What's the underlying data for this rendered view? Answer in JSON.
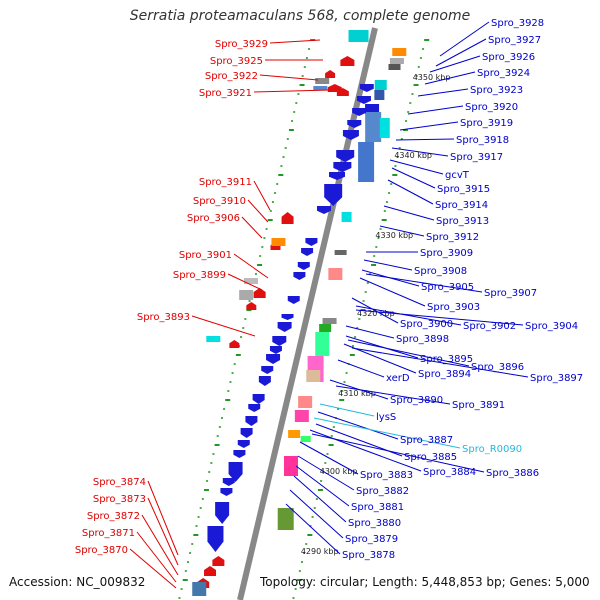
{
  "title": "Serratia proteamaculans 568, complete genome",
  "accession_text": "Accession: NC_009832",
  "summary_text": "Topology: circular; Length: 5,448,853 bp; Genes: 5,000",
  "colors": {
    "reverse_label": "#e00000",
    "forward_label": "#0000cc",
    "rna_label": "#22bbdd",
    "backbone": "#888888",
    "cds_forward": "#1a1ad6",
    "cds_reverse": "#e01010",
    "tick": "#229922"
  },
  "kbp_marks": [
    "4350 kbp",
    "4340 kbp",
    "4330 kbp",
    "4320 kbp",
    "4310 kbp",
    "4300 kbp",
    "4290 kbp"
  ],
  "left_labels": [
    "Spro_3929",
    "Spro_3925",
    "Spro_3922",
    "Spro_3921",
    "Spro_3911",
    "Spro_3910",
    "Spro_3906",
    "Spro_3901",
    "Spro_3899",
    "Spro_3893",
    "Spro_3874",
    "Spro_3873",
    "Spro_3872",
    "Spro_3871",
    "Spro_3870"
  ],
  "right_labels": [
    "Spro_3928",
    "Spro_3927",
    "Spro_3926",
    "Spro_3924",
    "Spro_3923",
    "Spro_3920",
    "Spro_3919",
    "Spro_3918",
    "Spro_3917",
    "gcvT",
    "Spro_3915",
    "Spro_3914",
    "Spro_3913",
    "Spro_3912",
    "Spro_3909",
    "Spro_3908",
    "Spro_3905",
    "Spro_3907",
    "Spro_3903",
    "Spro_3900",
    "Spro_3902",
    "Spro_3904",
    "Spro_3898",
    "Spro_3895",
    "Spro_3896",
    "Spro_3894",
    "Spro_3897",
    "xerD",
    "Spro_3890",
    "Spro_3891",
    "lysS",
    "Spro_3887",
    "Spro_R0090",
    "Spro_3885",
    "Spro_3884",
    "Spro_3886",
    "Spro_3883",
    "Spro_3882",
    "Spro_3881",
    "Spro_3880",
    "Spro_3879",
    "Spro_3878"
  ]
}
